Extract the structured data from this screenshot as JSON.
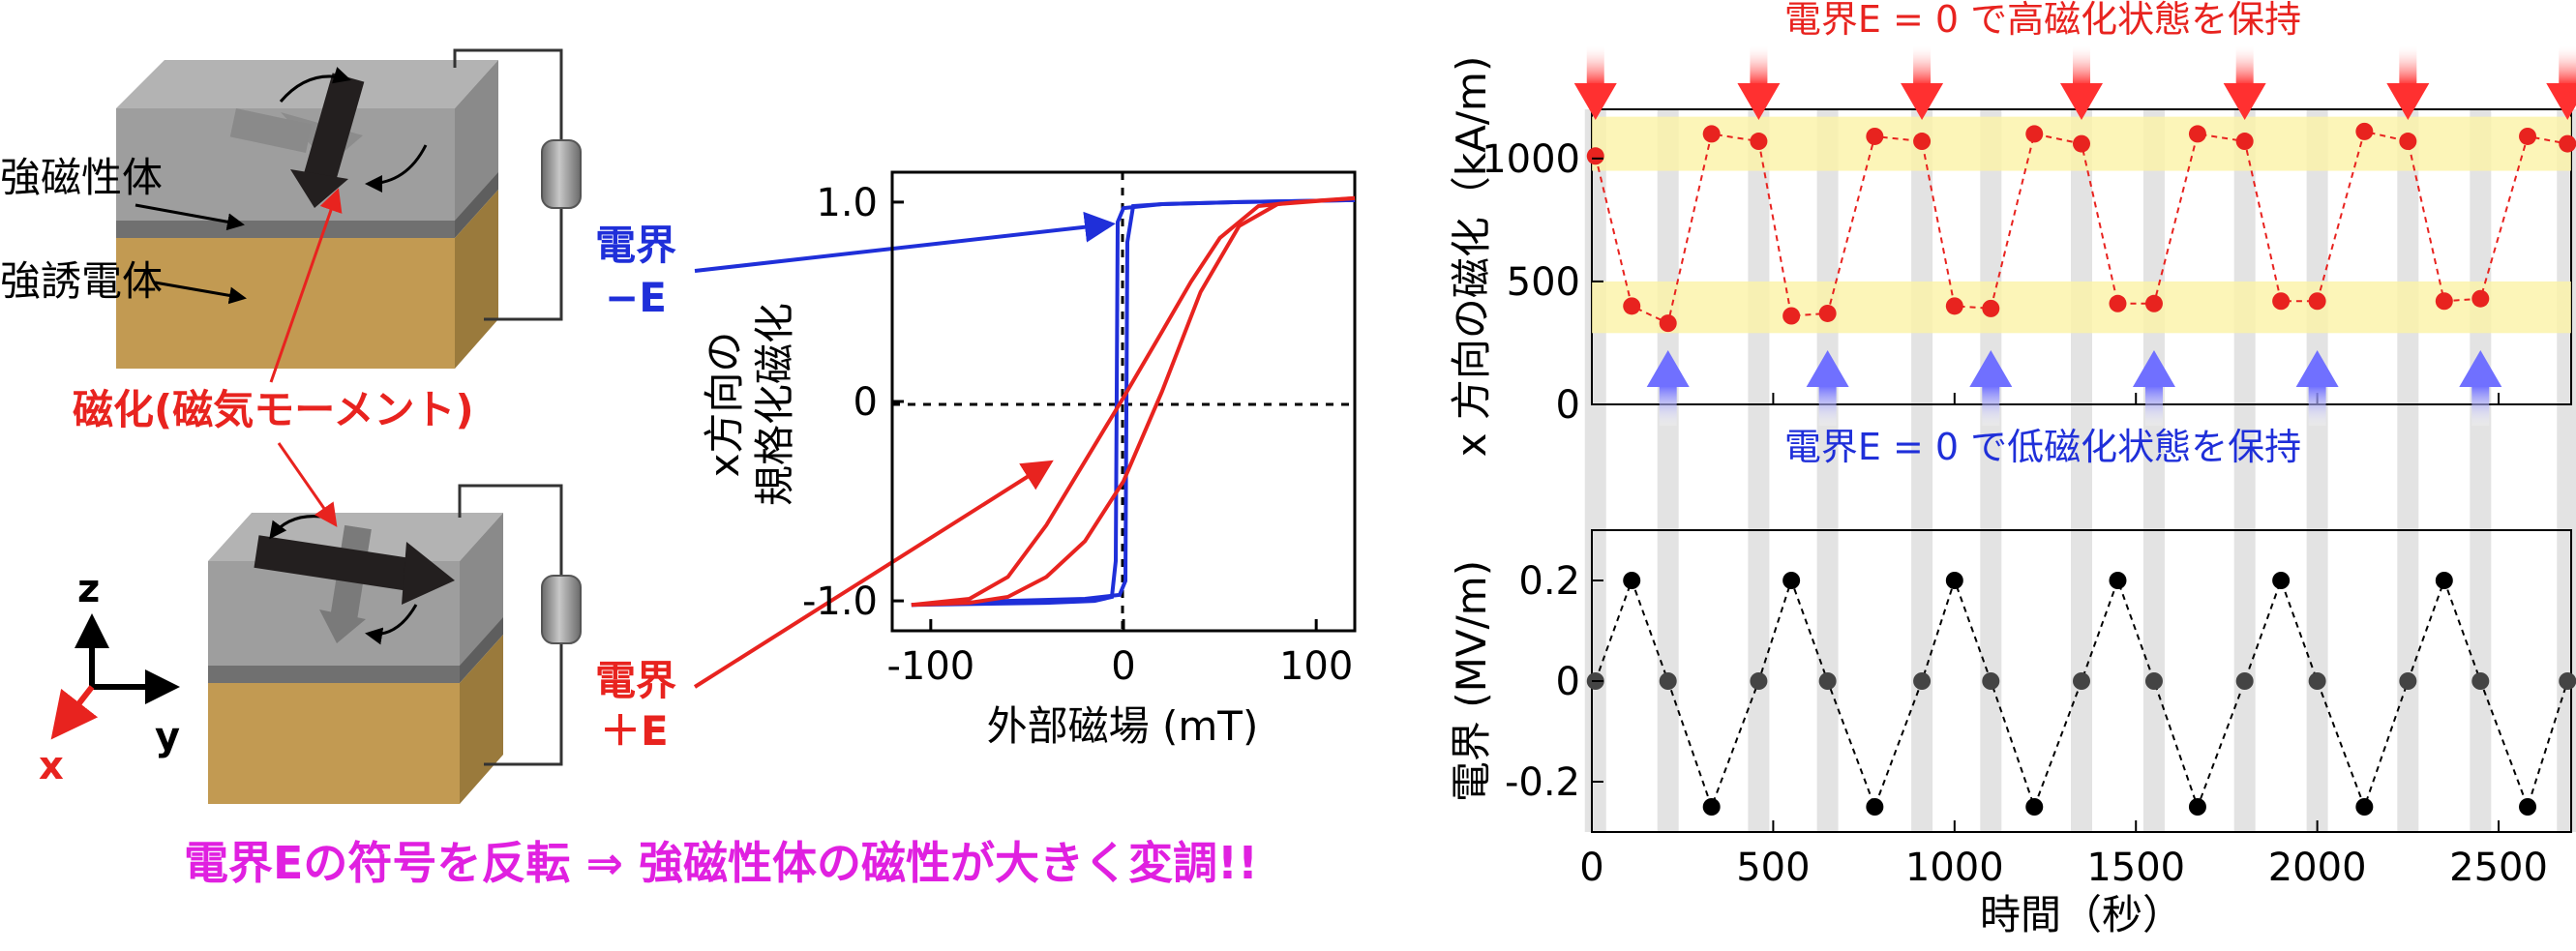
{
  "schematic": {
    "ferromagnet_label": "強磁性体",
    "ferroelectric_label": "強誘電体",
    "magnetization_label": "磁化(磁気モーメント)",
    "field_neg_line1": "電界",
    "field_neg_line2": "−E",
    "field_pos_line1": "電界",
    "field_pos_line2": "＋E",
    "axis_z": "z",
    "axis_y": "y",
    "axis_x": "x",
    "colors": {
      "top": "#a6a6a6",
      "side_top_layer": "#8c8c8c",
      "gold": "#c29a52",
      "red": "#e8231f",
      "blue": "#1f2fd9",
      "magenta": "#e020e0"
    }
  },
  "bottom_message": "電界Eの符号を反転 ⇒ 強磁性体の磁性が大きく変調!!",
  "annotations": {
    "high_state": "電界E = 0 で高磁化状態を保持",
    "low_state": "電界E = 0 で低磁化状態を保持"
  },
  "chart_data": [
    {
      "type": "line",
      "xlabel": "外部磁場 (mT)",
      "ylabel_line1": "x方向の",
      "ylabel_line2": "規格化磁化",
      "xlim": [
        -120,
        120
      ],
      "ylim": [
        -1.15,
        1.15
      ],
      "xticks": [
        -100,
        0,
        100
      ],
      "yticks": [
        -1.0,
        0,
        1.0
      ],
      "series": [
        {
          "color": "#1f2fd9",
          "branch": "ascending",
          "x": [
            -110,
            -40,
            -15,
            -6,
            -4,
            -3,
            0,
            20,
            60,
            120
          ],
          "y": [
            -1.02,
            -1.01,
            -1.0,
            -0.98,
            -0.8,
            0.9,
            0.97,
            0.99,
            1.0,
            1.01
          ]
        },
        {
          "color": "#1f2fd9",
          "branch": "descending",
          "x": [
            120,
            60,
            20,
            5,
            2,
            1,
            -2,
            -20,
            -60,
            -110
          ],
          "y": [
            1.01,
            1.0,
            0.99,
            0.98,
            0.8,
            -0.9,
            -0.97,
            -0.99,
            -1.0,
            -1.02
          ]
        },
        {
          "color": "#e8231f",
          "branch": "ascending",
          "x": [
            -110,
            -80,
            -60,
            -40,
            -20,
            0,
            20,
            40,
            60,
            80,
            120
          ],
          "y": [
            -1.02,
            -1.01,
            -0.98,
            -0.88,
            -0.7,
            -0.4,
            0.05,
            0.55,
            0.88,
            0.99,
            1.02
          ]
        },
        {
          "color": "#e8231f",
          "branch": "descending",
          "x": [
            120,
            90,
            70,
            50,
            35,
            20,
            0,
            -20,
            -40,
            -60,
            -80,
            -110
          ],
          "y": [
            1.02,
            1.0,
            0.98,
            0.82,
            0.6,
            0.35,
            0.02,
            -0.3,
            -0.62,
            -0.88,
            -0.99,
            -1.02
          ]
        }
      ]
    },
    {
      "type": "line",
      "ylabel": "x 方向の磁化（kA/m)",
      "xlim": [
        0,
        2700
      ],
      "ylim": [
        0,
        1200
      ],
      "yticks": [
        0,
        500,
        1000
      ],
      "series": [
        {
          "color": "#e8231f",
          "x": [
            10,
            110,
            210,
            330,
            460,
            550,
            650,
            780,
            910,
            1000,
            1100,
            1220,
            1350,
            1450,
            1550,
            1670,
            1800,
            1900,
            2000,
            2130,
            2250,
            2350,
            2450,
            2580,
            2690
          ],
          "y": [
            1010,
            400,
            330,
            1100,
            1070,
            360,
            370,
            1090,
            1070,
            400,
            390,
            1100,
            1060,
            410,
            410,
            1100,
            1070,
            420,
            420,
            1110,
            1070,
            420,
            430,
            1090,
            1060
          ]
        }
      ],
      "bands": [
        [
          950,
          1170
        ],
        [
          290,
          500
        ]
      ]
    },
    {
      "type": "line",
      "xlabel": "時間（秒）",
      "ylabel": "電界 (MV/m)",
      "xlim": [
        0,
        2700
      ],
      "ylim": [
        -0.3,
        0.3
      ],
      "xticks": [
        0,
        500,
        1000,
        1500,
        2000,
        2500
      ],
      "yticks": [
        -0.2,
        0,
        0.2
      ],
      "series": [
        {
          "color": "#000000",
          "x": [
            10,
            110,
            210,
            330,
            460,
            550,
            650,
            780,
            910,
            1000,
            1100,
            1220,
            1350,
            1450,
            1550,
            1670,
            1800,
            1900,
            2000,
            2130,
            2250,
            2350,
            2450,
            2580,
            2690
          ],
          "y": [
            0,
            0.2,
            0,
            -0.25,
            0,
            0.2,
            0,
            -0.25,
            0,
            0.2,
            0,
            -0.25,
            0,
            0.2,
            0,
            -0.25,
            0,
            0.2,
            0,
            -0.25,
            0,
            0.2,
            0,
            -0.25,
            0
          ]
        }
      ]
    }
  ]
}
